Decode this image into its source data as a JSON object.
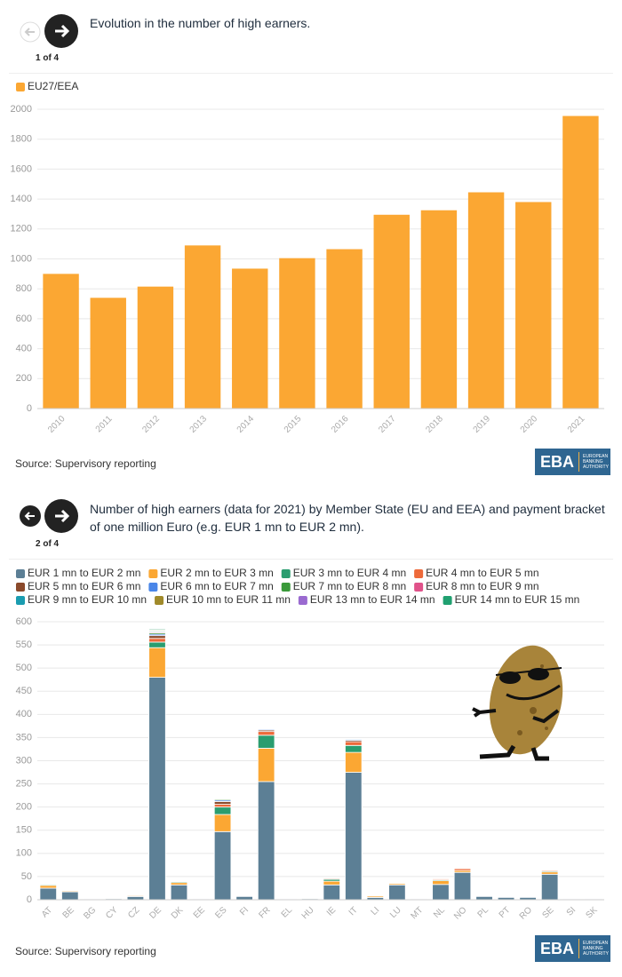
{
  "chart_data": [
    {
      "type": "bar",
      "stacked": false,
      "pager": "1 of 4",
      "title": "Evolution in the number of high earners.",
      "source": "Source: Supervisory reporting",
      "categories": [
        "2010",
        "2011",
        "2012",
        "2013",
        "2014",
        "2015",
        "2016",
        "2017",
        "2018",
        "2019",
        "2020",
        "2021"
      ],
      "series": [
        {
          "name": "EU27/EEA",
          "color": "#fba733",
          "values": [
            900,
            740,
            815,
            1090,
            935,
            1005,
            1065,
            1295,
            1325,
            1445,
            1380,
            1955
          ]
        }
      ],
      "ylim": [
        0,
        2000
      ],
      "yticks": [
        0,
        200,
        400,
        600,
        800,
        1000,
        1200,
        1400,
        1600,
        1800,
        2000
      ],
      "grid": true
    },
    {
      "type": "bar",
      "stacked": true,
      "pager": "2 of 4",
      "title": "Number of high earners (data for 2021) by Member State (EU and EEA) and payment bracket of one million Euro (e.g. EUR 1 mn to EUR 2 mn).",
      "source": "Source: Supervisory reporting",
      "categories": [
        "AT",
        "BE",
        "BG",
        "CY",
        "CZ",
        "DE",
        "DK",
        "EE",
        "ES",
        "FI",
        "FR",
        "EL",
        "HU",
        "IE",
        "IT",
        "LI",
        "LU",
        "MT",
        "NL",
        "NO",
        "PL",
        "PT",
        "RO",
        "SE",
        "SI",
        "SK"
      ],
      "series": [
        {
          "name": "EUR 1 mn to EUR 2 mn",
          "color": "#5c7f95",
          "values": [
            25,
            17,
            1,
            2,
            7,
            480,
            32,
            1,
            147,
            7,
            255,
            1,
            2,
            32,
            275,
            5,
            32,
            1,
            33,
            59,
            7,
            5,
            5,
            55,
            1,
            1
          ]
        },
        {
          "name": "EUR 2 mn to EUR 3 mn",
          "color": "#fba733",
          "values": [
            6,
            2,
            0,
            0,
            2,
            64,
            5,
            0,
            37,
            0,
            72,
            0,
            0,
            8,
            43,
            3,
            3,
            0,
            8,
            4,
            0,
            0,
            0,
            5,
            0,
            0
          ]
        },
        {
          "name": "EUR 3 mn to EUR 4 mn",
          "color": "#2a9d6f",
          "values": [
            2,
            0,
            0,
            0,
            1,
            12,
            2,
            0,
            16,
            0,
            28,
            0,
            0,
            4,
            15,
            1,
            1,
            0,
            2,
            0,
            0,
            0,
            0,
            2,
            0,
            0
          ]
        },
        {
          "name": "EUR 4 mn to EUR 5 mn",
          "color": "#ee6a3a",
          "values": [
            1,
            0,
            0,
            0,
            0,
            8,
            0,
            0,
            6,
            0,
            8,
            0,
            0,
            2,
            8,
            0,
            0,
            0,
            2,
            4,
            0,
            0,
            0,
            2,
            0,
            0
          ]
        },
        {
          "name": "EUR 5 mn to EUR 6 mn",
          "color": "#8b4a2b",
          "values": [
            0,
            0,
            0,
            0,
            0,
            6,
            0,
            0,
            6,
            0,
            3,
            0,
            0,
            1,
            3,
            0,
            0,
            0,
            0,
            0,
            0,
            0,
            0,
            1,
            0,
            0
          ]
        },
        {
          "name": "EUR 6 mn to EUR 7 mn",
          "color": "#4a86e8",
          "values": [
            0,
            0,
            0,
            0,
            0,
            3,
            0,
            0,
            3,
            0,
            2,
            0,
            0,
            0,
            2,
            0,
            0,
            0,
            0,
            0,
            0,
            0,
            0,
            0,
            0,
            0
          ]
        },
        {
          "name": "EUR 7 mn to EUR 8 mn",
          "color": "#3a9a3a",
          "values": [
            0,
            0,
            0,
            0,
            0,
            3,
            0,
            0,
            2,
            0,
            0,
            0,
            0,
            0,
            0,
            0,
            0,
            0,
            0,
            0,
            0,
            0,
            0,
            0,
            0,
            0
          ]
        },
        {
          "name": "EUR 8 mn to EUR 9 mn",
          "color": "#e0528a",
          "values": [
            0,
            0,
            0,
            0,
            0,
            2,
            0,
            0,
            0,
            0,
            1,
            0,
            0,
            0,
            0,
            0,
            0,
            0,
            0,
            0,
            0,
            0,
            0,
            0,
            0,
            0
          ]
        },
        {
          "name": "EUR 9 mn to EUR 10 mn",
          "color": "#1a9cb0",
          "values": [
            0,
            0,
            0,
            0,
            0,
            2,
            0,
            0,
            0,
            0,
            0,
            0,
            0,
            0,
            0,
            0,
            0,
            0,
            0,
            0,
            0,
            0,
            0,
            0,
            0,
            0
          ]
        },
        {
          "name": "EUR 10 mn to EUR 11 mn",
          "color": "#a08a2a",
          "values": [
            0,
            0,
            0,
            0,
            0,
            2,
            0,
            0,
            0,
            0,
            0,
            0,
            0,
            0,
            0,
            0,
            0,
            0,
            0,
            0,
            0,
            0,
            0,
            0,
            0,
            0
          ]
        },
        {
          "name": "EUR 13 mn to EUR 14 mn",
          "color": "#9a6ad0",
          "values": [
            0,
            0,
            0,
            0,
            0,
            1,
            0,
            0,
            0,
            0,
            0,
            0,
            0,
            0,
            0,
            0,
            0,
            0,
            0,
            0,
            0,
            0,
            0,
            0,
            0,
            0
          ]
        },
        {
          "name": "EUR 14 mn to EUR 15 mn",
          "color": "#20a070",
          "values": [
            0,
            0,
            0,
            0,
            0,
            2,
            0,
            0,
            0,
            0,
            0,
            0,
            0,
            0,
            0,
            0,
            0,
            0,
            0,
            0,
            0,
            0,
            0,
            0,
            0,
            0
          ]
        }
      ],
      "ylim": [
        0,
        600
      ],
      "yticks": [
        0,
        50,
        100,
        150,
        200,
        250,
        300,
        350,
        400,
        450,
        500,
        550,
        600
      ],
      "grid": true
    }
  ],
  "logo": {
    "name": "EBA",
    "text": "EUROPEAN BANKING AUTHORITY"
  }
}
